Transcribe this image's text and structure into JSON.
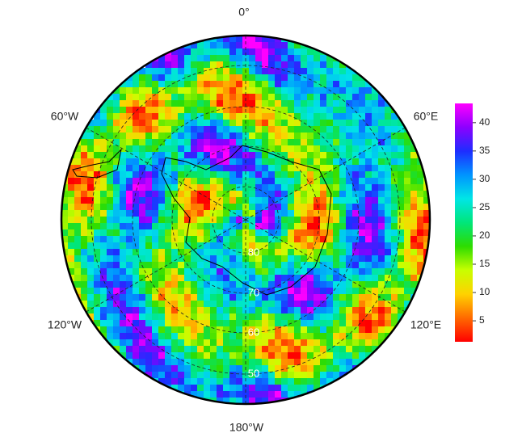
{
  "map": {
    "lon_labels": [
      "0°",
      "60°E",
      "120°E",
      "180°W",
      "120°W",
      "60°W"
    ],
    "lat_labels": [
      "80",
      "70",
      "60",
      "50"
    ],
    "colorbar": {
      "lim": [
        1.3,
        43.4
      ],
      "ticks": [
        5,
        10,
        15,
        20,
        25,
        30,
        35,
        40
      ],
      "colors": [
        "#ff0000",
        "#ff6a00",
        "#ffd200",
        "#c8ff00",
        "#2ddc00",
        "#00e67a",
        "#00e6e6",
        "#0094ff",
        "#1e2dff",
        "#8c00ff",
        "#ff00ff"
      ]
    }
  }
}
